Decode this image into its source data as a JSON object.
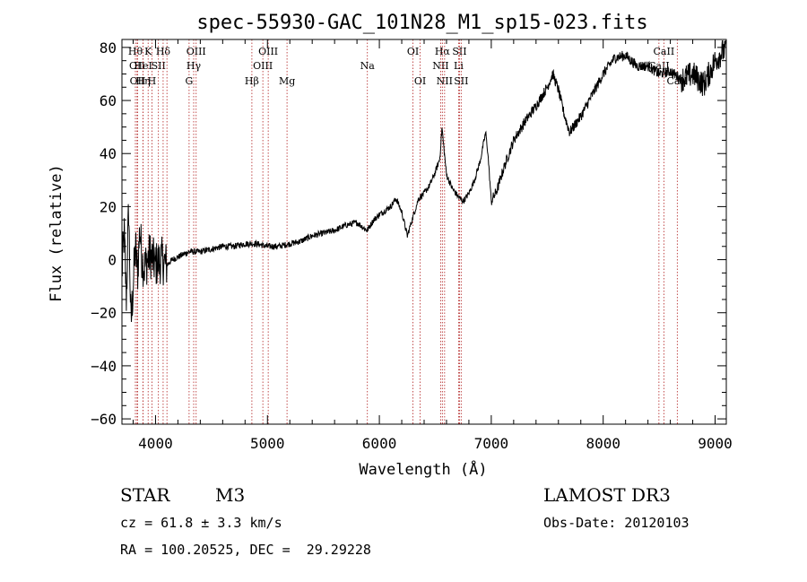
{
  "chart_data": {
    "type": "line",
    "title": "spec-55930-GAC_101N28_M1_sp15-023.fits",
    "xlabel": "Wavelength (Å)",
    "ylabel": "Flux (relative)",
    "xlim": [
      3700,
      9100
    ],
    "ylim": [
      -62,
      83
    ],
    "xticks": [
      4000,
      5000,
      6000,
      7000,
      8000,
      9000
    ],
    "yticks": [
      -60,
      -40,
      -20,
      0,
      20,
      40,
      60,
      80
    ],
    "spectrum_anchors": [
      [
        3700,
        -5
      ],
      [
        3720,
        10
      ],
      [
        3740,
        -15
      ],
      [
        3760,
        20
      ],
      [
        3780,
        -25
      ],
      [
        3800,
        -10
      ],
      [
        3820,
        5
      ],
      [
        3840,
        -5
      ],
      [
        3860,
        12
      ],
      [
        3880,
        0
      ],
      [
        3900,
        -3
      ],
      [
        3950,
        2
      ],
      [
        4000,
        -2
      ],
      [
        4050,
        0
      ],
      [
        4100,
        -2
      ],
      [
        4150,
        0
      ],
      [
        4200,
        1
      ],
      [
        4300,
        3
      ],
      [
        4400,
        3
      ],
      [
        4500,
        4
      ],
      [
        4600,
        5
      ],
      [
        4700,
        5
      ],
      [
        4800,
        6
      ],
      [
        4900,
        6
      ],
      [
        5000,
        5
      ],
      [
        5100,
        5
      ],
      [
        5200,
        6
      ],
      [
        5300,
        7
      ],
      [
        5400,
        9
      ],
      [
        5500,
        10
      ],
      [
        5600,
        11
      ],
      [
        5700,
        13
      ],
      [
        5800,
        14
      ],
      [
        5890,
        11
      ],
      [
        5950,
        15
      ],
      [
        6000,
        17
      ],
      [
        6100,
        20
      ],
      [
        6150,
        23
      ],
      [
        6200,
        18
      ],
      [
        6250,
        9
      ],
      [
        6300,
        16
      ],
      [
        6350,
        23
      ],
      [
        6400,
        25
      ],
      [
        6450,
        28
      ],
      [
        6500,
        33
      ],
      [
        6540,
        38
      ],
      [
        6560,
        50
      ],
      [
        6570,
        45
      ],
      [
        6600,
        32
      ],
      [
        6650,
        27
      ],
      [
        6700,
        24
      ],
      [
        6750,
        22
      ],
      [
        6800,
        25
      ],
      [
        6850,
        30
      ],
      [
        6900,
        37
      ],
      [
        6950,
        48
      ],
      [
        6970,
        40
      ],
      [
        7000,
        22
      ],
      [
        7050,
        26
      ],
      [
        7100,
        33
      ],
      [
        7200,
        45
      ],
      [
        7300,
        52
      ],
      [
        7400,
        58
      ],
      [
        7500,
        65
      ],
      [
        7550,
        70
      ],
      [
        7600,
        64
      ],
      [
        7650,
        55
      ],
      [
        7700,
        48
      ],
      [
        7800,
        54
      ],
      [
        7900,
        62
      ],
      [
        8000,
        70
      ],
      [
        8100,
        76
      ],
      [
        8200,
        77
      ],
      [
        8300,
        73
      ],
      [
        8400,
        73
      ],
      [
        8500,
        70
      ],
      [
        8600,
        71
      ],
      [
        8700,
        68
      ],
      [
        8800,
        70
      ],
      [
        8900,
        66
      ],
      [
        9000,
        75
      ],
      [
        9100,
        80
      ]
    ],
    "spectral_lines": [
      {
        "wl": 3820,
        "label": "Hθ",
        "row": 1
      },
      {
        "wl": 3835,
        "label": "OII",
        "row": 2
      },
      {
        "wl": 3840,
        "label": "OII",
        "row": 3
      },
      {
        "wl": 3889,
        "label": "HeI",
        "row": 2
      },
      {
        "wl": 3889,
        "label": "Hη",
        "row": 3
      },
      {
        "wl": 3934,
        "label": "K",
        "row": 1
      },
      {
        "wl": 3968,
        "label": "H",
        "row": 3
      },
      {
        "wl": 4026,
        "label": "SII",
        "row": 2
      },
      {
        "wl": 4068,
        "label": "Hδ",
        "row": 1
      },
      {
        "wl": 4102,
        "label": "",
        "row": 0
      },
      {
        "wl": 4300,
        "label": "G",
        "row": 3
      },
      {
        "wl": 4341,
        "label": "Hγ",
        "row": 2
      },
      {
        "wl": 4363,
        "label": "OIII",
        "row": 1
      },
      {
        "wl": 4861,
        "label": "Hβ",
        "row": 3
      },
      {
        "wl": 4959,
        "label": "OIII",
        "row": 2
      },
      {
        "wl": 5007,
        "label": "OIII",
        "row": 1
      },
      {
        "wl": 5175,
        "label": "Mg",
        "row": 3
      },
      {
        "wl": 5893,
        "label": "Na",
        "row": 2
      },
      {
        "wl": 6300,
        "label": "OI",
        "row": 1
      },
      {
        "wl": 6364,
        "label": "OI",
        "row": 3
      },
      {
        "wl": 6548,
        "label": "NII",
        "row": 2
      },
      {
        "wl": 6563,
        "label": "Hα",
        "row": 1
      },
      {
        "wl": 6583,
        "label": "NII",
        "row": 3
      },
      {
        "wl": 6716,
        "label": "SII",
        "row": 1
      },
      {
        "wl": 6708,
        "label": "Li",
        "row": 2
      },
      {
        "wl": 6731,
        "label": "SII",
        "row": 3
      },
      {
        "wl": 8498,
        "label": "CaII",
        "row": 2
      },
      {
        "wl": 8542,
        "label": "CaII",
        "row": 1
      },
      {
        "wl": 8662,
        "label": "CaII",
        "row": 3
      }
    ]
  },
  "info": {
    "class": "STAR",
    "subclass": "M3",
    "survey": "LAMOST DR3",
    "cz": "cz = 61.8 ± 3.3 km/s",
    "obs_date": "Obs-Date: 20120103",
    "coords": "RA = 100.20525, DEC =  29.29228"
  },
  "colors": {
    "line_marker": "#b22222",
    "spectrum": "#000000",
    "axis": "#000000"
  }
}
